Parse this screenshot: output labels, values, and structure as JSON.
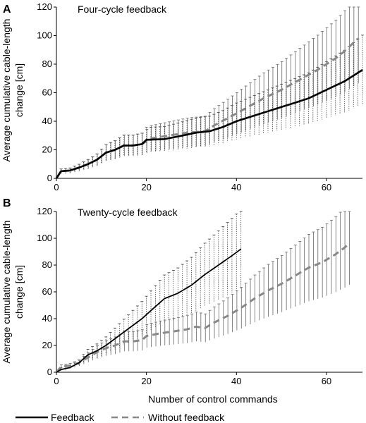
{
  "xlabel": "Number of control commands",
  "legend": {
    "placement": "bottom",
    "items": [
      {
        "label": "Feedback",
        "style": "solid",
        "color": "#000000"
      },
      {
        "label": "Without feedback",
        "style": "dashed",
        "color": "#888888"
      }
    ]
  },
  "chart_data": [
    {
      "type": "line",
      "panel": "A",
      "title": "Four-cycle feedback",
      "ylabel": "Average cumulative cable-length change [cm]",
      "xlim": [
        0,
        68
      ],
      "ylim": [
        0,
        120
      ],
      "xticks": [
        0,
        20,
        40,
        60
      ],
      "yticks": [
        0,
        20,
        40,
        60,
        80,
        100,
        120
      ],
      "grid": false,
      "series": [
        {
          "name": "Feedback",
          "color": "#000000",
          "style": "solid",
          "points": [
            [
              0,
              0
            ],
            [
              1,
              5
            ],
            [
              3,
              5.5
            ],
            [
              5,
              7.5
            ],
            [
              7,
              10
            ],
            [
              9,
              13
            ],
            [
              11,
              18
            ],
            [
              13,
              20
            ],
            [
              15,
              23
            ],
            [
              17,
              23
            ],
            [
              19,
              24
            ],
            [
              20,
              27
            ],
            [
              24,
              27.5
            ],
            [
              28,
              30
            ],
            [
              31,
              32
            ],
            [
              34,
              33
            ],
            [
              37,
              36
            ],
            [
              40,
              40
            ],
            [
              44,
              44
            ],
            [
              48,
              48
            ],
            [
              52,
              52
            ],
            [
              56,
              56
            ],
            [
              60,
              62
            ],
            [
              64,
              68
            ],
            [
              68,
              76
            ]
          ],
          "error_x": [
            [
              1,
              68
            ],
            1
          ],
          "error": "dotted"
        },
        {
          "name": "Without feedback",
          "color": "#888888",
          "style": "dashed",
          "points": [
            [
              0,
              0
            ],
            [
              1,
              5
            ],
            [
              3,
              5.5
            ],
            [
              5,
              7.5
            ],
            [
              7,
              10
            ],
            [
              9,
              13
            ],
            [
              11,
              18
            ],
            [
              13,
              20
            ],
            [
              15,
              23
            ],
            [
              17,
              23
            ],
            [
              19,
              24
            ],
            [
              21,
              28
            ],
            [
              25,
              30
            ],
            [
              29,
              32
            ],
            [
              33,
              33
            ],
            [
              35,
              37
            ],
            [
              38,
              42
            ],
            [
              42,
              49
            ],
            [
              46,
              56
            ],
            [
              50,
              62
            ],
            [
              54,
              69
            ],
            [
              58,
              76
            ],
            [
              62,
              84
            ],
            [
              64,
              89
            ],
            [
              67,
              98
            ]
          ]
        }
      ]
    },
    {
      "type": "line",
      "panel": "B",
      "title": "Twenty-cycle feedback",
      "ylabel": "Average cumulative cable-length change [cm]",
      "xlim": [
        0,
        68
      ],
      "ylim": [
        0,
        120
      ],
      "xticks": [
        0,
        20,
        40,
        60
      ],
      "yticks": [
        0,
        20,
        40,
        60,
        80,
        100,
        120
      ],
      "grid": false,
      "series": [
        {
          "name": "Feedback",
          "color": "#000000",
          "style": "solid",
          "points": [
            [
              0,
              0
            ],
            [
              1,
              2
            ],
            [
              3,
              3.5
            ],
            [
              5,
              7
            ],
            [
              7,
              13
            ],
            [
              9,
              16
            ],
            [
              11,
              20
            ],
            [
              13,
              25
            ],
            [
              15,
              30
            ],
            [
              17,
              35
            ],
            [
              19,
              40
            ],
            [
              21,
              46
            ],
            [
              23,
              52
            ],
            [
              24,
              55
            ],
            [
              27,
              59
            ],
            [
              30,
              65
            ],
            [
              33,
              73
            ],
            [
              36,
              80
            ],
            [
              39,
              87
            ],
            [
              41,
              92
            ]
          ]
        },
        {
          "name": "Without feedback",
          "color": "#888888",
          "style": "dashed",
          "points": [
            [
              0,
              0
            ],
            [
              1,
              4
            ],
            [
              3,
              5
            ],
            [
              5,
              7
            ],
            [
              7,
              11
            ],
            [
              9,
              15
            ],
            [
              11,
              18
            ],
            [
              13,
              20
            ],
            [
              15,
              23
            ],
            [
              17,
              23
            ],
            [
              19,
              24
            ],
            [
              20,
              27
            ],
            [
              23,
              29
            ],
            [
              25,
              30
            ],
            [
              27,
              31
            ],
            [
              29,
              32
            ],
            [
              31,
              34
            ],
            [
              33,
              33
            ],
            [
              35,
              37
            ],
            [
              38,
              42
            ],
            [
              41,
              48
            ],
            [
              44,
              55
            ],
            [
              47,
              61
            ],
            [
              50,
              66
            ],
            [
              53,
              72
            ],
            [
              56,
              78
            ],
            [
              59,
              82
            ],
            [
              62,
              88
            ],
            [
              64,
              93
            ],
            [
              65,
              96
            ]
          ]
        }
      ]
    }
  ]
}
